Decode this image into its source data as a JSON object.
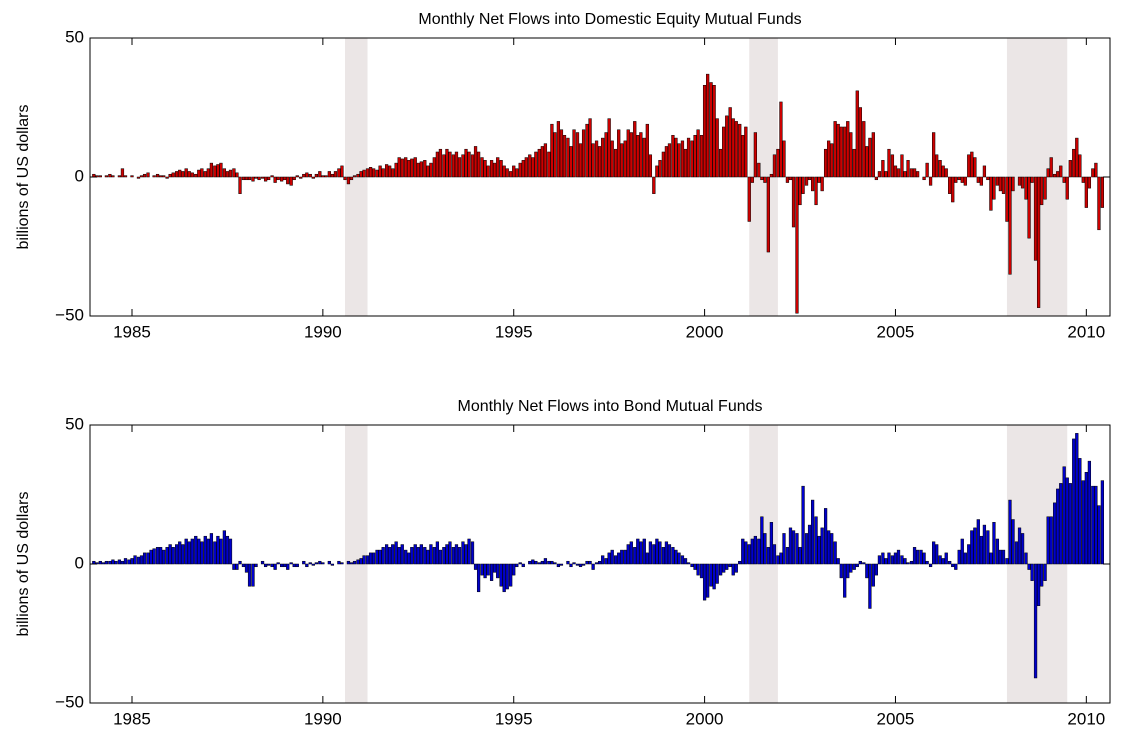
{
  "chart_data": [
    {
      "type": "bar",
      "title": "Monthly Net Flows into Domestic Equity Mutual Funds",
      "ylabel": "billions of US dollars",
      "color": "#cc0000",
      "xlim": [
        1983.9,
        2010.62
      ],
      "xticks": [
        1985,
        1990,
        1995,
        2000,
        2005,
        2010
      ],
      "ylim": [
        -50,
        50
      ],
      "yticks": [
        {
          "value": -50,
          "label": "−50"
        },
        0,
        50
      ],
      "shaded_regions": [
        [
          1990.58,
          1991.17
        ],
        [
          2001.17,
          2001.92
        ],
        [
          2007.92,
          2009.5
        ]
      ],
      "shade_color": "#ebe6e6",
      "x": [
        1984,
        1984.08,
        1984.17,
        1984.25,
        1984.33,
        1984.42,
        1984.5,
        1984.58,
        1984.67,
        1984.75,
        1984.83,
        1984.92,
        1985,
        1985.08,
        1985.17,
        1985.25,
        1985.33,
        1985.42,
        1985.5,
        1985.58,
        1985.67,
        1985.75,
        1985.83,
        1985.92,
        1986,
        1986.08,
        1986.17,
        1986.25,
        1986.33,
        1986.42,
        1986.5,
        1986.58,
        1986.67,
        1986.75,
        1986.83,
        1986.92,
        1987,
        1987.08,
        1987.17,
        1987.25,
        1987.33,
        1987.42,
        1987.5,
        1987.58,
        1987.67,
        1987.75,
        1987.83,
        1987.92,
        1988,
        1988.08,
        1988.17,
        1988.25,
        1988.33,
        1988.42,
        1988.5,
        1988.58,
        1988.67,
        1988.75,
        1988.83,
        1988.92,
        1989,
        1989.08,
        1989.17,
        1989.25,
        1989.33,
        1989.42,
        1989.5,
        1989.58,
        1989.67,
        1989.75,
        1989.83,
        1989.92,
        1990,
        1990.08,
        1990.17,
        1990.25,
        1990.33,
        1990.42,
        1990.5,
        1990.58,
        1990.67,
        1990.75,
        1990.83,
        1990.92,
        1991,
        1991.08,
        1991.17,
        1991.25,
        1991.33,
        1991.42,
        1991.5,
        1991.58,
        1991.67,
        1991.75,
        1991.83,
        1991.92,
        1992,
        1992.08,
        1992.17,
        1992.25,
        1992.33,
        1992.42,
        1992.5,
        1992.58,
        1992.67,
        1992.75,
        1992.83,
        1992.92,
        1993,
        1993.08,
        1993.17,
        1993.25,
        1993.33,
        1993.42,
        1993.5,
        1993.58,
        1993.67,
        1993.75,
        1993.83,
        1993.92,
        1994,
        1994.08,
        1994.17,
        1994.25,
        1994.33,
        1994.42,
        1994.5,
        1994.58,
        1994.67,
        1994.75,
        1994.83,
        1994.92,
        1995,
        1995.08,
        1995.17,
        1995.25,
        1995.33,
        1995.42,
        1995.5,
        1995.58,
        1995.67,
        1995.75,
        1995.83,
        1995.92,
        1996,
        1996.08,
        1996.17,
        1996.25,
        1996.33,
        1996.42,
        1996.5,
        1996.58,
        1996.67,
        1996.75,
        1996.83,
        1996.92,
        1997,
        1997.08,
        1997.17,
        1997.25,
        1997.33,
        1997.42,
        1997.5,
        1997.58,
        1997.67,
        1997.75,
        1997.83,
        1997.92,
        1998,
        1998.08,
        1998.17,
        1998.25,
        1998.33,
        1998.42,
        1998.5,
        1998.58,
        1998.67,
        1998.75,
        1998.83,
        1998.92,
        1999,
        1999.08,
        1999.17,
        1999.25,
        1999.33,
        1999.42,
        1999.5,
        1999.58,
        1999.67,
        1999.75,
        1999.83,
        1999.92,
        2000,
        2000.08,
        2000.17,
        2000.25,
        2000.33,
        2000.42,
        2000.5,
        2000.58,
        2000.67,
        2000.75,
        2000.83,
        2000.92,
        2001,
        2001.08,
        2001.17,
        2001.25,
        2001.33,
        2001.42,
        2001.5,
        2001.58,
        2001.67,
        2001.75,
        2001.83,
        2001.92,
        2002,
        2002.08,
        2002.17,
        2002.25,
        2002.33,
        2002.42,
        2002.5,
        2002.58,
        2002.67,
        2002.75,
        2002.83,
        2002.92,
        2003,
        2003.08,
        2003.17,
        2003.25,
        2003.33,
        2003.42,
        2003.5,
        2003.58,
        2003.67,
        2003.75,
        2003.83,
        2003.92,
        2004,
        2004.08,
        2004.17,
        2004.25,
        2004.33,
        2004.42,
        2004.5,
        2004.58,
        2004.67,
        2004.75,
        2004.83,
        2004.92,
        2005,
        2005.08,
        2005.17,
        2005.25,
        2005.33,
        2005.42,
        2005.5,
        2005.58,
        2005.67,
        2005.75,
        2005.83,
        2005.92,
        2006,
        2006.08,
        2006.17,
        2006.25,
        2006.33,
        2006.42,
        2006.5,
        2006.58,
        2006.67,
        2006.75,
        2006.83,
        2006.92,
        2007,
        2007.08,
        2007.17,
        2007.25,
        2007.33,
        2007.42,
        2007.5,
        2007.58,
        2007.67,
        2007.75,
        2007.83,
        2007.92,
        2008,
        2008.08,
        2008.17,
        2008.25,
        2008.33,
        2008.42,
        2008.5,
        2008.58,
        2008.67,
        2008.75,
        2008.83,
        2008.92,
        2009,
        2009.08,
        2009.17,
        2009.25,
        2009.33,
        2009.42,
        2009.5,
        2009.58,
        2009.67,
        2009.75,
        2009.83,
        2009.92,
        2010,
        2010.08,
        2010.17,
        2010.25,
        2010.33,
        2010.42
      ],
      "values": [
        1,
        0.5,
        0.5,
        0,
        0.5,
        1,
        0.5,
        0,
        0.5,
        3,
        0.5,
        0,
        0.5,
        0,
        -0.5,
        0.5,
        1,
        1.5,
        0,
        0.5,
        1,
        0.5,
        0.5,
        -0.5,
        1,
        1.5,
        2,
        2.5,
        2,
        3,
        2,
        1.5,
        1,
        2.5,
        3,
        2,
        3,
        5,
        4,
        4.5,
        5,
        3,
        2,
        2.5,
        3,
        1.5,
        -6,
        -1,
        -1,
        -1,
        -1.5,
        -0.5,
        -1,
        -0.5,
        -1.5,
        -1,
        0.5,
        -2,
        -1,
        -1.5,
        -1,
        -2.5,
        -3,
        -1,
        0.5,
        -0.5,
        1,
        1.5,
        1,
        -0.5,
        1,
        2,
        0.5,
        0.5,
        2,
        1,
        2,
        3,
        4,
        -1,
        -2.5,
        -1,
        0.5,
        1,
        2,
        2.5,
        3,
        3.5,
        3,
        2.5,
        4,
        3,
        4.5,
        4,
        3,
        5,
        7,
        6.5,
        7,
        6,
        6.5,
        7,
        5,
        5.5,
        6,
        4,
        5,
        7,
        9,
        10,
        8,
        10,
        9,
        8,
        9,
        7,
        8,
        10,
        9,
        8,
        11,
        9,
        7,
        6,
        4,
        6,
        5,
        7,
        6,
        4,
        3,
        2,
        4,
        3,
        5,
        6,
        7,
        8,
        7,
        9,
        10,
        11,
        12,
        9,
        19,
        16,
        20,
        17,
        15,
        14,
        11,
        17,
        16,
        12,
        17,
        19,
        21,
        12,
        13,
        11,
        14,
        16,
        21,
        13,
        10,
        17,
        12,
        13,
        17,
        16,
        20,
        15,
        16,
        14,
        19,
        8,
        -6,
        4,
        6,
        9,
        11,
        12,
        15,
        14,
        12,
        13,
        10,
        14,
        13,
        15,
        17,
        15,
        33,
        37,
        34,
        33,
        21,
        10,
        18,
        22,
        25,
        21,
        20,
        19,
        15,
        18,
        -16,
        -2,
        16,
        5,
        -1,
        -2,
        -27,
        1,
        8,
        10,
        27,
        13,
        -2,
        -1,
        -18,
        -49,
        -10,
        -6,
        -3,
        -1,
        -5,
        -10,
        -2,
        -5,
        10,
        13,
        12,
        20,
        19,
        18,
        18,
        20,
        16,
        10,
        31,
        25,
        20,
        11,
        14,
        16,
        -1,
        2,
        6,
        2,
        10,
        8,
        4,
        3,
        8,
        2,
        6,
        3,
        3,
        2,
        0,
        -1,
        5,
        -3,
        16,
        8,
        6,
        4,
        3,
        -6,
        -9,
        -2,
        -1,
        -2,
        -3,
        8,
        9,
        7,
        -2,
        -3,
        4,
        -1,
        -12,
        -8,
        -3,
        -5,
        -6,
        -16,
        -35,
        -5,
        0,
        -3,
        -4,
        -8,
        -22,
        -2,
        -30,
        -47,
        -10,
        -8,
        3,
        7,
        1,
        2,
        4,
        -2,
        -8,
        6,
        10,
        14,
        8,
        -2,
        -11,
        -4,
        3,
        5,
        -19,
        -11
      ]
    },
    {
      "type": "bar",
      "title": "Monthly Net Flows into Bond Mutual Funds",
      "ylabel": "billions of US dollars",
      "color": "#0000cc",
      "xlim": [
        1983.9,
        2010.62
      ],
      "xticks": [
        1985,
        1990,
        1995,
        2000,
        2005,
        2010
      ],
      "ylim": [
        -50,
        50
      ],
      "yticks": [
        {
          "value": -50,
          "label": "−50"
        },
        0,
        50
      ],
      "shaded_regions": [
        [
          1990.58,
          1991.17
        ],
        [
          2001.17,
          2001.92
        ],
        [
          2007.92,
          2009.5
        ]
      ],
      "shade_color": "#ebe6e6",
      "x": [
        1984,
        1984.08,
        1984.17,
        1984.25,
        1984.33,
        1984.42,
        1984.5,
        1984.58,
        1984.67,
        1984.75,
        1984.83,
        1984.92,
        1985,
        1985.08,
        1985.17,
        1985.25,
        1985.33,
        1985.42,
        1985.5,
        1985.58,
        1985.67,
        1985.75,
        1985.83,
        1985.92,
        1986,
        1986.08,
        1986.17,
        1986.25,
        1986.33,
        1986.42,
        1986.5,
        1986.58,
        1986.67,
        1986.75,
        1986.83,
        1986.92,
        1987,
        1987.08,
        1987.17,
        1987.25,
        1987.33,
        1987.42,
        1987.5,
        1987.58,
        1987.67,
        1987.75,
        1987.83,
        1987.92,
        1988,
        1988.08,
        1988.17,
        1988.25,
        1988.33,
        1988.42,
        1988.5,
        1988.58,
        1988.67,
        1988.75,
        1988.83,
        1988.92,
        1989,
        1989.08,
        1989.17,
        1989.25,
        1989.33,
        1989.42,
        1989.5,
        1989.58,
        1989.67,
        1989.75,
        1989.83,
        1989.92,
        1990,
        1990.08,
        1990.17,
        1990.25,
        1990.33,
        1990.42,
        1990.5,
        1990.58,
        1990.67,
        1990.75,
        1990.83,
        1990.92,
        1991,
        1991.08,
        1991.17,
        1991.25,
        1991.33,
        1991.42,
        1991.5,
        1991.58,
        1991.67,
        1991.75,
        1991.83,
        1991.92,
        1992,
        1992.08,
        1992.17,
        1992.25,
        1992.33,
        1992.42,
        1992.5,
        1992.58,
        1992.67,
        1992.75,
        1992.83,
        1992.92,
        1993,
        1993.08,
        1993.17,
        1993.25,
        1993.33,
        1993.42,
        1993.5,
        1993.58,
        1993.67,
        1993.75,
        1993.83,
        1993.92,
        1994,
        1994.08,
        1994.17,
        1994.25,
        1994.33,
        1994.42,
        1994.5,
        1994.58,
        1994.67,
        1994.75,
        1994.83,
        1994.92,
        1995,
        1995.08,
        1995.17,
        1995.25,
        1995.33,
        1995.42,
        1995.5,
        1995.58,
        1995.67,
        1995.75,
        1995.83,
        1995.92,
        1996,
        1996.08,
        1996.17,
        1996.25,
        1996.33,
        1996.42,
        1996.5,
        1996.58,
        1996.67,
        1996.75,
        1996.83,
        1996.92,
        1997,
        1997.08,
        1997.17,
        1997.25,
        1997.33,
        1997.42,
        1997.5,
        1997.58,
        1997.67,
        1997.75,
        1997.83,
        1997.92,
        1998,
        1998.08,
        1998.17,
        1998.25,
        1998.33,
        1998.42,
        1998.5,
        1998.58,
        1998.67,
        1998.75,
        1998.83,
        1998.92,
        1999,
        1999.08,
        1999.17,
        1999.25,
        1999.33,
        1999.42,
        1999.5,
        1999.58,
        1999.67,
        1999.75,
        1999.83,
        1999.92,
        2000,
        2000.08,
        2000.17,
        2000.25,
        2000.33,
        2000.42,
        2000.5,
        2000.58,
        2000.67,
        2000.75,
        2000.83,
        2000.92,
        2001,
        2001.08,
        2001.17,
        2001.25,
        2001.33,
        2001.42,
        2001.5,
        2001.58,
        2001.67,
        2001.75,
        2001.83,
        2001.92,
        2002,
        2002.08,
        2002.17,
        2002.25,
        2002.33,
        2002.42,
        2002.5,
        2002.58,
        2002.67,
        2002.75,
        2002.83,
        2002.92,
        2003,
        2003.08,
        2003.17,
        2003.25,
        2003.33,
        2003.42,
        2003.5,
        2003.58,
        2003.67,
        2003.75,
        2003.83,
        2003.92,
        2004,
        2004.08,
        2004.17,
        2004.25,
        2004.33,
        2004.42,
        2004.5,
        2004.58,
        2004.67,
        2004.75,
        2004.83,
        2004.92,
        2005,
        2005.08,
        2005.17,
        2005.25,
        2005.33,
        2005.42,
        2005.5,
        2005.58,
        2005.67,
        2005.75,
        2005.83,
        2005.92,
        2006,
        2006.08,
        2006.17,
        2006.25,
        2006.33,
        2006.42,
        2006.5,
        2006.58,
        2006.67,
        2006.75,
        2006.83,
        2006.92,
        2007,
        2007.08,
        2007.17,
        2007.25,
        2007.33,
        2007.42,
        2007.5,
        2007.58,
        2007.67,
        2007.75,
        2007.83,
        2007.92,
        2008,
        2008.08,
        2008.17,
        2008.25,
        2008.33,
        2008.42,
        2008.5,
        2008.58,
        2008.67,
        2008.75,
        2008.83,
        2008.92,
        2009,
        2009.08,
        2009.17,
        2009.25,
        2009.33,
        2009.42,
        2009.5,
        2009.58,
        2009.67,
        2009.75,
        2009.83,
        2009.92,
        2010,
        2010.08,
        2010.17,
        2010.25,
        2010.33,
        2010.42
      ],
      "values": [
        1,
        0.5,
        1,
        0.5,
        1,
        1,
        1.5,
        1,
        1.5,
        1,
        2,
        1.5,
        2,
        3,
        2.5,
        3,
        4,
        4,
        5,
        5.5,
        6,
        6,
        5,
        6,
        7,
        6,
        7,
        8,
        7,
        9,
        8,
        9,
        10,
        9,
        8,
        10,
        9,
        11,
        8,
        10,
        9,
        12,
        10,
        9,
        -2,
        -2,
        1,
        -1,
        -3,
        -8,
        -8,
        -1,
        0,
        1,
        -1,
        -0.5,
        -1,
        -2,
        0.5,
        -1,
        -1,
        -2,
        0.5,
        -1,
        -1,
        0,
        1,
        -1,
        0.5,
        -0.5,
        0.5,
        1,
        0.5,
        0,
        1,
        -0.5,
        0,
        1,
        0.5,
        0,
        1,
        0.5,
        1,
        1.5,
        2,
        3,
        3,
        4,
        4,
        5,
        5,
        6,
        7,
        6,
        7,
        8,
        6,
        7,
        5,
        4,
        6,
        7,
        6,
        7,
        6,
        5,
        7,
        6,
        8,
        5,
        6,
        7,
        8,
        6,
        7,
        6,
        8,
        7,
        9,
        8,
        -2,
        -10,
        -4,
        -5,
        -4,
        -6,
        -3,
        -5,
        -8,
        -10,
        -9,
        -8,
        -4,
        -1,
        0.5,
        -1,
        0,
        1,
        1.5,
        1,
        0.5,
        1,
        2,
        1,
        1,
        0.5,
        -1,
        -0.5,
        0,
        1,
        -1,
        0.5,
        -0.5,
        -1,
        -0.5,
        1,
        1,
        -2,
        0.5,
        1,
        3,
        2,
        4,
        5,
        3,
        4,
        5,
        5,
        7,
        8,
        6,
        9,
        8,
        9,
        4,
        8,
        7,
        9,
        8,
        6,
        8,
        7,
        6,
        5,
        4,
        3,
        2,
        0.5,
        -1,
        -2,
        -4,
        -5,
        -13,
        -12,
        -8,
        -9,
        -7,
        -4,
        -3,
        -2,
        -1,
        -4,
        -3,
        1,
        9,
        8,
        7,
        9,
        10,
        9,
        17,
        11,
        6,
        15,
        7,
        3,
        4,
        11,
        6,
        13,
        12,
        11,
        6,
        28,
        11,
        14,
        23,
        17,
        10,
        13,
        20,
        12,
        11,
        8,
        2,
        -5,
        -12,
        -5,
        -3,
        -2,
        -1,
        1,
        0.5,
        -5,
        -16,
        -8,
        -4,
        3,
        4,
        2,
        4,
        3,
        4,
        5,
        3,
        2,
        0.5,
        1,
        6,
        5,
        5,
        4,
        1,
        -1,
        8,
        7,
        3,
        2,
        4,
        1,
        -1,
        -2,
        5,
        9,
        4,
        7,
        12,
        13,
        16,
        10,
        14,
        12,
        4,
        15,
        9,
        5,
        5,
        2,
        23,
        16,
        8,
        13,
        11,
        4,
        -2,
        -6,
        -41,
        -15,
        -8,
        -6,
        17,
        17,
        22,
        27,
        29,
        35,
        31,
        29,
        45,
        47,
        38,
        30,
        33,
        37,
        28,
        28,
        21,
        30
      ]
    }
  ]
}
